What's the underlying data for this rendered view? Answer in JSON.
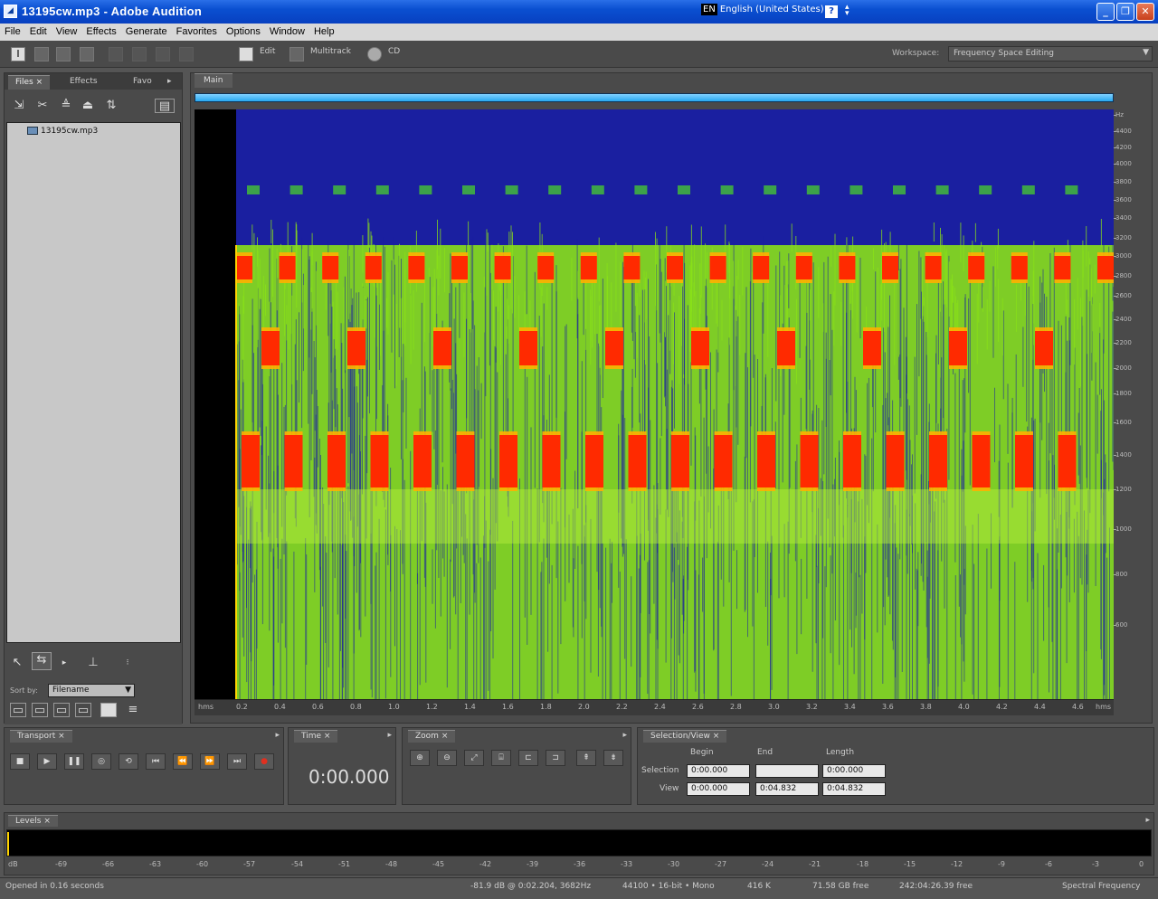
{
  "window": {
    "title": "13195cw.mp3 - Adobe Audition",
    "language_code": "EN",
    "language": "English (United States)",
    "help": "?"
  },
  "menu": [
    "File",
    "Edit",
    "View",
    "Effects",
    "Generate",
    "Favorites",
    "Options",
    "Window",
    "Help"
  ],
  "toolbar": {
    "edit_label": "Edit",
    "multitrack_label": "Multitrack",
    "cd_label": "CD",
    "workspace_label": "Workspace:",
    "workspace_value": "Frequency Space Editing"
  },
  "files_panel": {
    "tabs": [
      "Files",
      "Effects",
      "Favo"
    ],
    "file_name": "13195cw.mp3",
    "sort_label": "Sort by:",
    "sort_value": "Filename"
  },
  "main_panel": {
    "tab": "Main",
    "freq_ticks": [
      "Hz",
      "4400",
      "4200",
      "4000",
      "3800",
      "3600",
      "3400",
      "3200",
      "3000",
      "2800",
      "2600",
      "2400",
      "2200",
      "2000",
      "1800",
      "1600",
      "1400",
      "1200",
      "1000",
      "800",
      "600"
    ],
    "time_ticks": [
      "hms",
      "0.2",
      "0.4",
      "0.6",
      "0.8",
      "1.0",
      "1.2",
      "1.4",
      "1.6",
      "1.8",
      "2.0",
      "2.2",
      "2.4",
      "2.6",
      "2.8",
      "3.0",
      "3.2",
      "3.4",
      "3.6",
      "3.8",
      "4.0",
      "4.2",
      "4.4",
      "4.6",
      "hms"
    ]
  },
  "transport": {
    "tab": "Transport"
  },
  "time_panel": {
    "tab": "Time",
    "display": "0:00.000"
  },
  "zoom_panel": {
    "tab": "Zoom"
  },
  "selection_view": {
    "tab": "Selection/View",
    "headers": [
      "Begin",
      "End",
      "Length"
    ],
    "selection_label": "Selection",
    "view_label": "View",
    "selection": [
      "0:00.000",
      "",
      "0:00.000"
    ],
    "view": [
      "0:00.000",
      "0:04.832",
      "0:04.832"
    ]
  },
  "levels": {
    "tab": "Levels",
    "ticks": [
      "dB",
      "-69",
      "-66",
      "-63",
      "-60",
      "-57",
      "-54",
      "-51",
      "-48",
      "-45",
      "-42",
      "-39",
      "-36",
      "-33",
      "-30",
      "-27",
      "-24",
      "-21",
      "-18",
      "-15",
      "-12",
      "-9",
      "-6",
      "-3",
      "0"
    ]
  },
  "status": {
    "opened": "Opened in 0.16 seconds",
    "cursor": "-81.9 dB @ 0:02.204, 3682Hz",
    "format": "44100 • 16-bit • Mono",
    "size": "416 K",
    "free_space": "71.58 GB free",
    "free_time": "242:04:26.39 free",
    "mode": "Spectral Frequency"
  },
  "colors": {
    "spectro_bg": "#1a1fa0",
    "spectro_noise": "#8ae018",
    "spectro_tone": "#ff2a00"
  }
}
